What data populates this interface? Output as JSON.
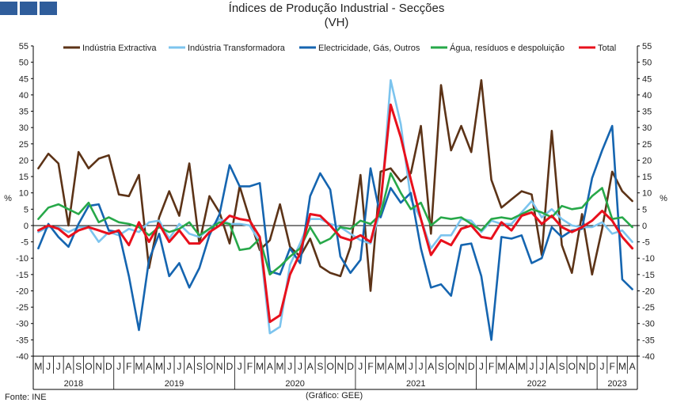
{
  "header": {
    "title": "Índices de Produção Industrial - Secções",
    "subtitle": "(VH)"
  },
  "footer": {
    "source": "Fonte: INE",
    "credit": "(Gráfico: GEE)"
  },
  "chart_data": {
    "type": "line",
    "title": "Índices de Produção Industrial - Secções",
    "subtitle": "(VH)",
    "ylabel": "%",
    "ylim": [
      -40,
      55
    ],
    "yticks": [
      -40,
      -35,
      -30,
      -25,
      -20,
      -15,
      -10,
      -5,
      0,
      5,
      10,
      15,
      20,
      25,
      30,
      35,
      40,
      45,
      50,
      55
    ],
    "grid": false,
    "legend": "top",
    "x": [
      "M",
      "J",
      "J",
      "A",
      "S",
      "O",
      "N",
      "D",
      "J",
      "F",
      "M",
      "A",
      "M",
      "J",
      "J",
      "A",
      "S",
      "O",
      "N",
      "D",
      "J",
      "F",
      "M",
      "A",
      "M",
      "J",
      "J",
      "A",
      "S",
      "O",
      "N",
      "D",
      "J",
      "F",
      "M",
      "A",
      "M",
      "J",
      "J",
      "A",
      "S",
      "O",
      "N",
      "D",
      "J",
      "F",
      "M",
      "A",
      "M",
      "J",
      "J",
      "A",
      "S",
      "O",
      "N",
      "D",
      "J",
      "F",
      "M",
      "A"
    ],
    "years": [
      {
        "label": "2018",
        "start": 0,
        "end": 7
      },
      {
        "label": "2019",
        "start": 8,
        "end": 19
      },
      {
        "label": "2020",
        "start": 20,
        "end": 31
      },
      {
        "label": "2021",
        "start": 32,
        "end": 43
      },
      {
        "label": "2022",
        "start": 44,
        "end": 55
      },
      {
        "label": "2023",
        "start": 56,
        "end": 59
      }
    ],
    "series": [
      {
        "name": "Indústria Extractiva",
        "color": "#5c3317",
        "values": [
          17.5,
          22,
          19,
          0,
          22.5,
          17.5,
          20.5,
          21.5,
          9.5,
          9,
          15.5,
          -13,
          2.5,
          10.5,
          3,
          19,
          -5.5,
          9,
          4,
          -5.5,
          12,
          2,
          -7.5,
          -4.5,
          6.5,
          -6.5,
          -9.5,
          -4,
          -12.5,
          -14.5,
          -15.5,
          -6.5,
          15.5,
          -20,
          16.5,
          17.5,
          13.5,
          16,
          30.5,
          -2.5,
          43,
          23,
          30.5,
          22.5,
          44.5,
          14,
          5.5,
          8,
          10.5,
          9.5,
          -9,
          29,
          -6,
          -14.5,
          3.5,
          -15,
          -1,
          16.5,
          10.5,
          7.5
        ]
      },
      {
        "name": "Indústria Transformadora",
        "color": "#7cc4ee",
        "values": [
          -2,
          -0.5,
          -0.5,
          -2,
          -0.5,
          -0.5,
          -5,
          -2,
          -3,
          -1,
          -2,
          1,
          1.5,
          -4,
          0.5,
          -2.5,
          -3.5,
          -1,
          2,
          0.5,
          0.5,
          0,
          -5,
          -33,
          -31,
          -12,
          -5.5,
          2,
          2,
          0.5,
          -0.5,
          -2.5,
          -4.5,
          -5.5,
          4.5,
          44.5,
          31,
          8,
          2,
          -7,
          -3,
          -3,
          2,
          1.5,
          -2,
          1.5,
          0.5,
          0.5,
          4,
          7.5,
          2.5,
          5,
          2,
          0,
          -0.5,
          -0.5,
          1,
          -2.5,
          -1.5,
          -5
        ]
      },
      {
        "name": "Electricidade, Gás, Outros",
        "color": "#1565b0",
        "values": [
          -7,
          0.5,
          -3.5,
          -6.5,
          0.5,
          6,
          6.5,
          -1.5,
          -2,
          -15.5,
          -32,
          -10.5,
          -2.5,
          -15.5,
          -11.5,
          -19,
          -13,
          -3,
          3.5,
          18.5,
          12,
          12,
          13,
          -14,
          -15,
          -7,
          -11.5,
          9,
          16,
          11,
          -9.5,
          -14.5,
          -10.5,
          17.5,
          2.5,
          11.5,
          7,
          10,
          -7,
          -19,
          -18,
          -21.5,
          -6,
          -5.5,
          -15.5,
          -35,
          -3.5,
          -4,
          -3,
          -11.5,
          -10,
          -0.5,
          -3.5,
          -1.5,
          -1,
          14.5,
          23,
          30.5,
          -16.5,
          -19.5
        ]
      },
      {
        "name": "Água, resíduos e despoluição",
        "color": "#27a849",
        "values": [
          2,
          5.5,
          6.5,
          5,
          3.5,
          7,
          1,
          2.5,
          1,
          0.5,
          -0.5,
          -3,
          -0.5,
          -2,
          -1,
          1,
          -3,
          -1,
          1,
          0.5,
          -7.5,
          -7,
          -4,
          -15,
          -12.5,
          -9.5,
          -7,
          -0.5,
          -5.5,
          -4,
          -0.5,
          -1,
          1.5,
          0.5,
          3.5,
          16,
          10,
          5,
          7,
          0,
          2.5,
          2,
          2.5,
          0.5,
          -1.5,
          2,
          2.5,
          2,
          3.5,
          5,
          4,
          2.5,
          6,
          5,
          5.5,
          9,
          11.5,
          2,
          2.5,
          -0.5
        ]
      },
      {
        "name": "Total",
        "color": "#e8101c",
        "values": [
          -1.5,
          0,
          -1,
          -3.5,
          -1.5,
          -0.5,
          -1.5,
          -2.5,
          -1.5,
          -6,
          1,
          -5,
          0.5,
          -5,
          -1.5,
          -5.5,
          -5.5,
          -2,
          0,
          3,
          2,
          1.5,
          -3.5,
          -29.5,
          -27.5,
          -15,
          -8.5,
          3.5,
          3,
          0,
          -3.5,
          -4.5,
          -3,
          -5,
          7,
          37,
          27,
          14,
          2,
          -9,
          -4.5,
          -6,
          -1,
          0,
          -3.5,
          -4,
          1,
          -1.5,
          3,
          4,
          0.5,
          3,
          -0.5,
          -2,
          -0.5,
          1.5,
          4.5,
          1.5,
          -3.5,
          -7
        ]
      }
    ]
  }
}
